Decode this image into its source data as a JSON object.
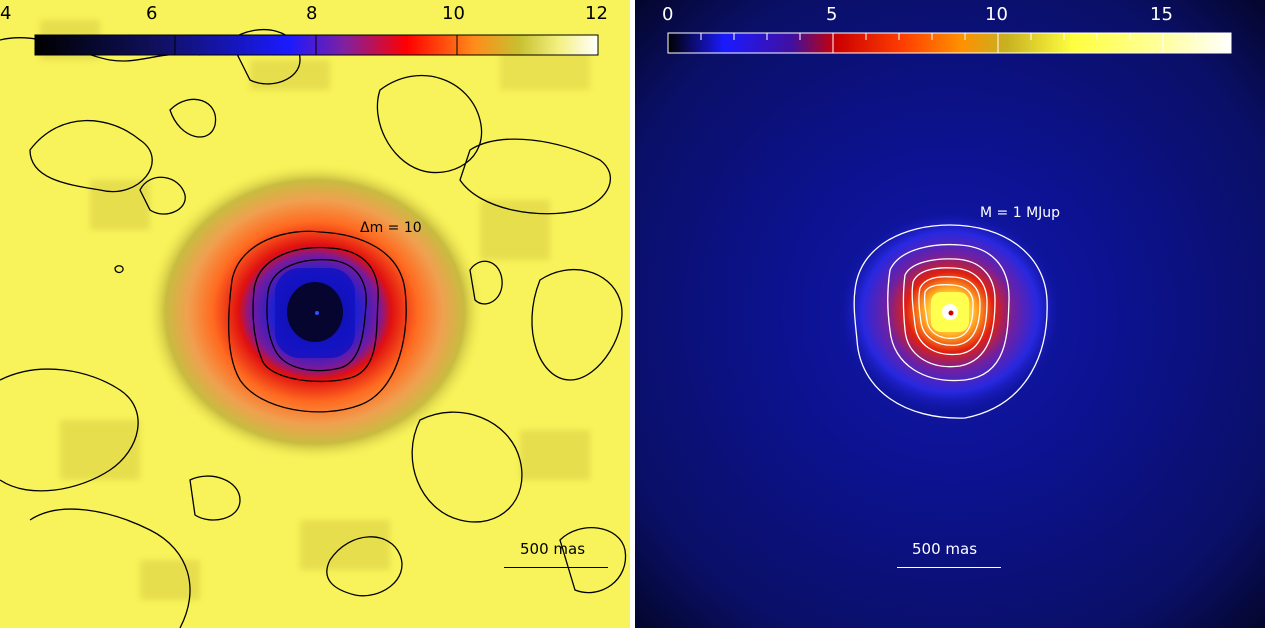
{
  "left_panel": {
    "colorbar": {
      "tick_labels": [
        "4",
        "6",
        "8",
        "10",
        "12"
      ],
      "colors": [
        "#000000",
        "#0000ff",
        "#ff0000",
        "#ff8c1a",
        "#c8c030",
        "#ffffff"
      ]
    },
    "contour_label": "Δm = 10",
    "scale_bar_label": "500 mas",
    "background_color": "#f8f35a",
    "contour_color": "#000000"
  },
  "right_panel": {
    "colorbar": {
      "tick_labels": [
        "0",
        "5",
        "10",
        "15"
      ],
      "colors": [
        "#000000",
        "#0000ff",
        "#cc0000",
        "#ff8000",
        "#ffff40",
        "#ffffff"
      ]
    },
    "contour_label": "M = 1 MJup",
    "scale_bar_label": "500 mas",
    "background_color": "#0a0f66",
    "contour_color": "#ffffff"
  }
}
